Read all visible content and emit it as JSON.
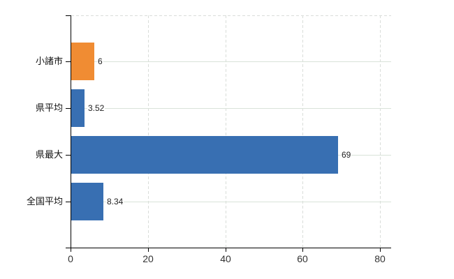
{
  "chart_data": {
    "type": "bar",
    "orientation": "horizontal",
    "title": "",
    "xlabel": "",
    "ylabel": "",
    "categories": [
      "小諸市",
      "県平均",
      "県最大",
      "全国平均"
    ],
    "values": [
      6,
      3.52,
      69,
      8.34
    ],
    "value_labels": [
      "6",
      "3.52",
      "69",
      "8.34"
    ],
    "bar_colors": [
      "#f08c33",
      "#386fb2",
      "#386fb2",
      "#386fb2"
    ],
    "xlim": [
      0,
      80
    ],
    "x_ticks": [
      0,
      20,
      40,
      60,
      80
    ],
    "x_tick_labels": [
      "0",
      "20",
      "40",
      "60",
      "80"
    ],
    "grid": true,
    "legend": null,
    "background": "#ffffff"
  },
  "colors": {
    "highlight_bar": "#f08c33",
    "default_bar": "#386fb2",
    "axis": "#000000",
    "h_gridline": "#d9e2d9",
    "v_gridline_dashed": "#d9ddd9",
    "tick_label": "#333333",
    "value_label": "#222222",
    "category_label": "#111111"
  }
}
